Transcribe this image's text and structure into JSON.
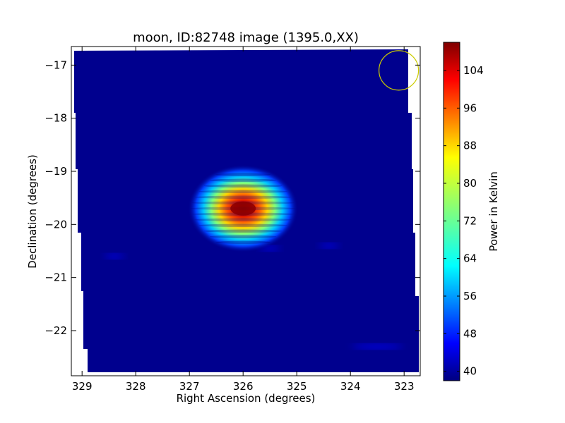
{
  "chart_data": {
    "type": "heatmap",
    "title": "moon, ID:82748 image (1395.0,XX)",
    "xlabel": "Right Ascension (degrees)",
    "ylabel": "Declination (degrees)",
    "xlim": [
      329.2,
      322.7
    ],
    "ylim": [
      -22.85,
      -16.65
    ],
    "x_ticks": [
      329,
      328,
      327,
      326,
      325,
      324,
      323
    ],
    "y_ticks": [
      -17,
      -18,
      -19,
      -20,
      -21,
      -22
    ],
    "x_tick_labels": [
      "329",
      "328",
      "327",
      "326",
      "325",
      "324",
      "323"
    ],
    "y_tick_labels": [
      "−17",
      "−18",
      "−19",
      "−20",
      "−21",
      "−22"
    ],
    "colormap": "jet",
    "colorbar": {
      "label": "Power in Kelvin",
      "range": [
        38,
        110
      ],
      "ticks": [
        40,
        48,
        56,
        64,
        72,
        80,
        88,
        96,
        104
      ],
      "tick_labels": [
        "40",
        "48",
        "56",
        "64",
        "72",
        "80",
        "88",
        "96",
        "104"
      ]
    },
    "background_level": 40,
    "source": {
      "ra": 326.0,
      "dec": -19.7,
      "peak": 110
    },
    "faint_features": [
      {
        "ra": 328.4,
        "dec": -20.6,
        "level": 46
      },
      {
        "ra": 325.5,
        "dec": -20.45,
        "level": 46
      },
      {
        "ra": 324.4,
        "dec": -20.4,
        "level": 46
      },
      {
        "ra": 323.5,
        "dec": -22.3,
        "level": 47
      }
    ],
    "beam_circle": {
      "ra": 323.1,
      "dec": -17.1,
      "color": "#cccc00"
    }
  }
}
